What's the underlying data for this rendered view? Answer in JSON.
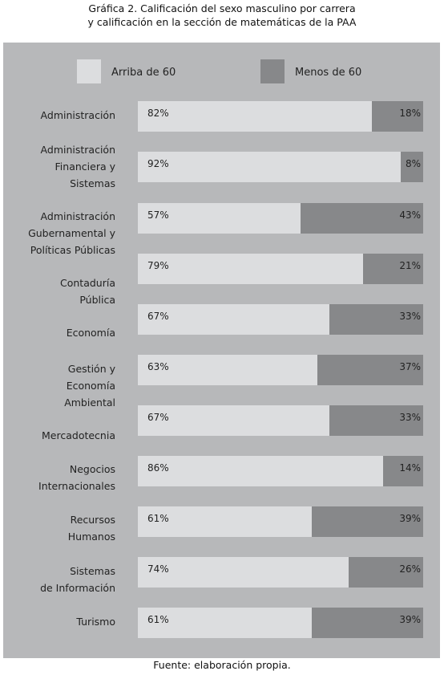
{
  "title_lines": [
    "Gráfica 2. Calificación del sexo masculino por carrera",
    "y calificación en la sección de matemáticas de la PAA"
  ],
  "source": "Fuente: elaboración propia.",
  "colors": {
    "panel": "#b7b8ba",
    "above": "#dcdddf",
    "below": "#87888a"
  },
  "chart_data": {
    "type": "bar",
    "orientation": "horizontal",
    "stacked": true,
    "unit": "%",
    "legend_position": "top",
    "xlim": [
      0,
      100
    ],
    "series": [
      {
        "name": "Arriba de 60",
        "values": [
          82,
          92,
          57,
          79,
          67,
          63,
          67,
          86,
          61,
          74,
          61
        ]
      },
      {
        "name": "Menos de 60",
        "values": [
          18,
          8,
          43,
          21,
          33,
          37,
          33,
          14,
          39,
          26,
          39
        ]
      }
    ],
    "category_labels": [
      [
        "Administración"
      ],
      [
        "Administración",
        "Financiera y",
        "Sistemas"
      ],
      [
        "Administración",
        "Gubernamental y",
        "Políticas Públicas"
      ],
      [
        "Contaduría",
        "Pública"
      ],
      [
        "Economía"
      ],
      [
        "Gestión y",
        "Economía",
        "Ambiental"
      ],
      [
        "Mercadotecnia"
      ],
      [
        "Negocios",
        "Internacionales"
      ],
      [
        "Recursos",
        "Humanos"
      ],
      [
        "Sistemas",
        "de Información"
      ],
      [
        "Turismo"
      ]
    ]
  }
}
